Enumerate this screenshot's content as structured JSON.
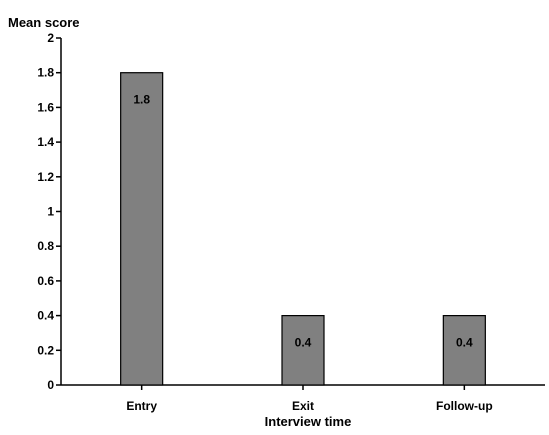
{
  "chart_data": {
    "type": "bar",
    "title": "",
    "ylabel": "Mean score",
    "xlabel": "Interview time",
    "categories": [
      "Entry",
      "Exit",
      "Follow-up"
    ],
    "values": [
      1.8,
      0.4,
      0.4
    ],
    "data_labels": [
      "1.8",
      "0.4",
      "0.4"
    ],
    "ylim": [
      0,
      2
    ],
    "y_ticks": [
      "0",
      "0.2",
      "0.4",
      "0.6",
      "0.8",
      "1",
      "1.2",
      "1.4",
      "1.6",
      "1.8",
      "2"
    ],
    "bar_color": "#808080",
    "bar_edge_color": "#000000",
    "grid": false,
    "legend": "none"
  }
}
